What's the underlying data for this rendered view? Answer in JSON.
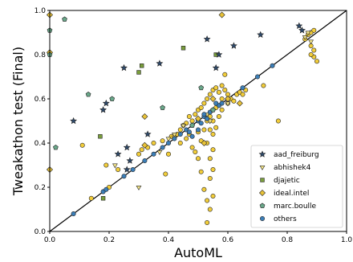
{
  "chart_data": {
    "type": "scatter",
    "title": "",
    "xlabel": "AutoML",
    "ylabel": "Tweakathon test (Final)",
    "xlim": [
      0,
      1
    ],
    "ylim": [
      0,
      1
    ],
    "xticks": [
      "0.0",
      "0.2",
      "0.4",
      "0.6",
      "0.8",
      "1.0"
    ],
    "yticks": [
      "0.0",
      "0.2",
      "0.4",
      "0.6",
      "0.8",
      "1.0"
    ],
    "grid": false,
    "legend_position": "bottom-right",
    "reference_line": {
      "from": [
        0,
        0
      ],
      "to": [
        1,
        1
      ],
      "color": "#000000"
    },
    "series": [
      {
        "name": "aad_freiburg",
        "marker": "star",
        "color": "#2e4a6b",
        "points": [
          [
            0.08,
            0.5
          ],
          [
            0.18,
            0.55
          ],
          [
            0.19,
            0.58
          ],
          [
            0.25,
            0.74
          ],
          [
            0.37,
            0.76
          ],
          [
            0.53,
            0.87
          ],
          [
            0.56,
            0.74
          ],
          [
            0.57,
            0.8
          ],
          [
            0.62,
            0.84
          ],
          [
            0.71,
            0.89
          ],
          [
            0.85,
            0.91
          ],
          [
            0.84,
            0.93
          ],
          [
            0.23,
            0.35
          ],
          [
            0.26,
            0.38
          ],
          [
            0.27,
            0.32
          ],
          [
            0.33,
            0.44
          ],
          [
            0.26,
            0.28
          ]
        ]
      },
      {
        "name": "abhishek4",
        "marker": "triangle-down",
        "color": "#f5e68a",
        "points": [
          [
            0.22,
            0.3
          ],
          [
            0.3,
            0.2
          ],
          [
            0.37,
            0.36
          ],
          [
            0.4,
            0.42
          ],
          [
            0.42,
            0.44
          ],
          [
            0.45,
            0.48
          ],
          [
            0.53,
            0.53
          ],
          [
            0.54,
            0.5
          ],
          [
            0.6,
            0.58
          ],
          [
            0.86,
            0.88
          ],
          [
            0.87,
            0.9
          ],
          [
            0.88,
            0.86
          ]
        ]
      },
      {
        "name": "djajetic",
        "marker": "square",
        "color": "#7a9e3c",
        "points": [
          [
            0.3,
            0.72
          ],
          [
            0.31,
            0.75
          ],
          [
            0.17,
            0.43
          ],
          [
            0.45,
            0.83
          ],
          [
            0.18,
            0.15
          ],
          [
            0.56,
            0.8
          ]
        ]
      },
      {
        "name": "ideal.intel",
        "marker": "diamond",
        "color": "#e8c238",
        "points": [
          [
            0.0,
            0.98
          ],
          [
            0.0,
            0.81
          ],
          [
            0.0,
            0.28
          ],
          [
            0.32,
            0.52
          ],
          [
            0.55,
            0.6
          ],
          [
            0.58,
            0.98
          ],
          [
            0.6,
            0.6
          ],
          [
            0.64,
            0.58
          ],
          [
            0.32,
            0.39
          ],
          [
            0.5,
            0.51
          ],
          [
            0.52,
            0.4
          ]
        ]
      },
      {
        "name": "marc.boulle",
        "marker": "pentagon",
        "color": "#6aa88a",
        "points": [
          [
            0.05,
            0.96
          ],
          [
            0.0,
            0.91
          ],
          [
            0.0,
            0.8
          ],
          [
            0.02,
            0.38
          ],
          [
            0.13,
            0.62
          ],
          [
            0.21,
            0.6
          ],
          [
            0.38,
            0.56
          ],
          [
            0.51,
            0.65
          ],
          [
            0.48,
            0.48
          ],
          [
            0.55,
            0.55
          ]
        ]
      },
      {
        "name": "others",
        "marker": "circle",
        "color": "#3c7fb8",
        "points": [
          [
            0.08,
            0.08
          ],
          [
            0.18,
            0.18
          ],
          [
            0.19,
            0.19
          ],
          [
            0.25,
            0.25
          ],
          [
            0.28,
            0.28
          ],
          [
            0.32,
            0.32
          ],
          [
            0.35,
            0.35
          ],
          [
            0.38,
            0.38
          ],
          [
            0.4,
            0.4
          ],
          [
            0.42,
            0.42
          ],
          [
            0.44,
            0.44
          ],
          [
            0.46,
            0.46
          ],
          [
            0.48,
            0.48
          ],
          [
            0.5,
            0.5
          ],
          [
            0.52,
            0.52
          ],
          [
            0.54,
            0.54
          ],
          [
            0.55,
            0.55
          ],
          [
            0.57,
            0.57
          ],
          [
            0.58,
            0.58
          ],
          [
            0.6,
            0.6
          ],
          [
            0.65,
            0.65
          ],
          [
            0.7,
            0.7
          ],
          [
            0.75,
            0.75
          ],
          [
            0.52,
            0.53
          ],
          [
            0.53,
            0.51
          ],
          [
            0.51,
            0.49
          ],
          [
            0.47,
            0.45
          ],
          [
            0.56,
            0.58
          ],
          [
            0.5,
            0.46
          ],
          [
            0.48,
            0.43
          ]
        ]
      },
      {
        "name": "ideal.intel",
        "marker": "circle-yellow",
        "color": "#f2cd3a",
        "legend": false,
        "points": [
          [
            0.11,
            0.39
          ],
          [
            0.14,
            0.15
          ],
          [
            0.19,
            0.3
          ],
          [
            0.2,
            0.2
          ],
          [
            0.23,
            0.28
          ],
          [
            0.3,
            0.35
          ],
          [
            0.31,
            0.37
          ],
          [
            0.33,
            0.38
          ],
          [
            0.35,
            0.4
          ],
          [
            0.38,
            0.41
          ],
          [
            0.39,
            0.26
          ],
          [
            0.4,
            0.35
          ],
          [
            0.41,
            0.43
          ],
          [
            0.42,
            0.43
          ],
          [
            0.43,
            0.44
          ],
          [
            0.44,
            0.46
          ],
          [
            0.44,
            0.4
          ],
          [
            0.45,
            0.48
          ],
          [
            0.46,
            0.49
          ],
          [
            0.46,
            0.42
          ],
          [
            0.47,
            0.52
          ],
          [
            0.47,
            0.44
          ],
          [
            0.48,
            0.5
          ],
          [
            0.48,
            0.38
          ],
          [
            0.49,
            0.53
          ],
          [
            0.49,
            0.36
          ],
          [
            0.5,
            0.55
          ],
          [
            0.5,
            0.33
          ],
          [
            0.5,
            0.45
          ],
          [
            0.51,
            0.56
          ],
          [
            0.51,
            0.41
          ],
          [
            0.51,
            0.27
          ],
          [
            0.52,
            0.58
          ],
          [
            0.52,
            0.46
          ],
          [
            0.52,
            0.19
          ],
          [
            0.53,
            0.6
          ],
          [
            0.53,
            0.5
          ],
          [
            0.53,
            0.4
          ],
          [
            0.53,
            0.14
          ],
          [
            0.53,
            0.04
          ],
          [
            0.54,
            0.62
          ],
          [
            0.54,
            0.52
          ],
          [
            0.54,
            0.46
          ],
          [
            0.54,
            0.33
          ],
          [
            0.54,
            0.24
          ],
          [
            0.54,
            0.1
          ],
          [
            0.55,
            0.64
          ],
          [
            0.55,
            0.5
          ],
          [
            0.55,
            0.44
          ],
          [
            0.55,
            0.37
          ],
          [
            0.55,
            0.28
          ],
          [
            0.55,
            0.16
          ],
          [
            0.56,
            0.65
          ],
          [
            0.56,
            0.56
          ],
          [
            0.56,
            0.47
          ],
          [
            0.57,
            0.63
          ],
          [
            0.57,
            0.52
          ],
          [
            0.58,
            0.66
          ],
          [
            0.58,
            0.6
          ],
          [
            0.58,
            0.55
          ],
          [
            0.59,
            0.64
          ],
          [
            0.59,
            0.71
          ],
          [
            0.6,
            0.62
          ],
          [
            0.6,
            0.58
          ],
          [
            0.61,
            0.6
          ],
          [
            0.62,
            0.59
          ],
          [
            0.63,
            0.62
          ],
          [
            0.64,
            0.63
          ],
          [
            0.65,
            0.62
          ],
          [
            0.66,
            0.64
          ],
          [
            0.72,
            0.66
          ],
          [
            0.77,
            0.5
          ],
          [
            0.86,
            0.87
          ],
          [
            0.87,
            0.89
          ],
          [
            0.88,
            0.9
          ],
          [
            0.88,
            0.84
          ],
          [
            0.89,
            0.82
          ],
          [
            0.89,
            0.79
          ],
          [
            0.9,
            0.77
          ],
          [
            0.89,
            0.91
          ],
          [
            0.88,
            0.8
          ]
        ]
      }
    ]
  }
}
